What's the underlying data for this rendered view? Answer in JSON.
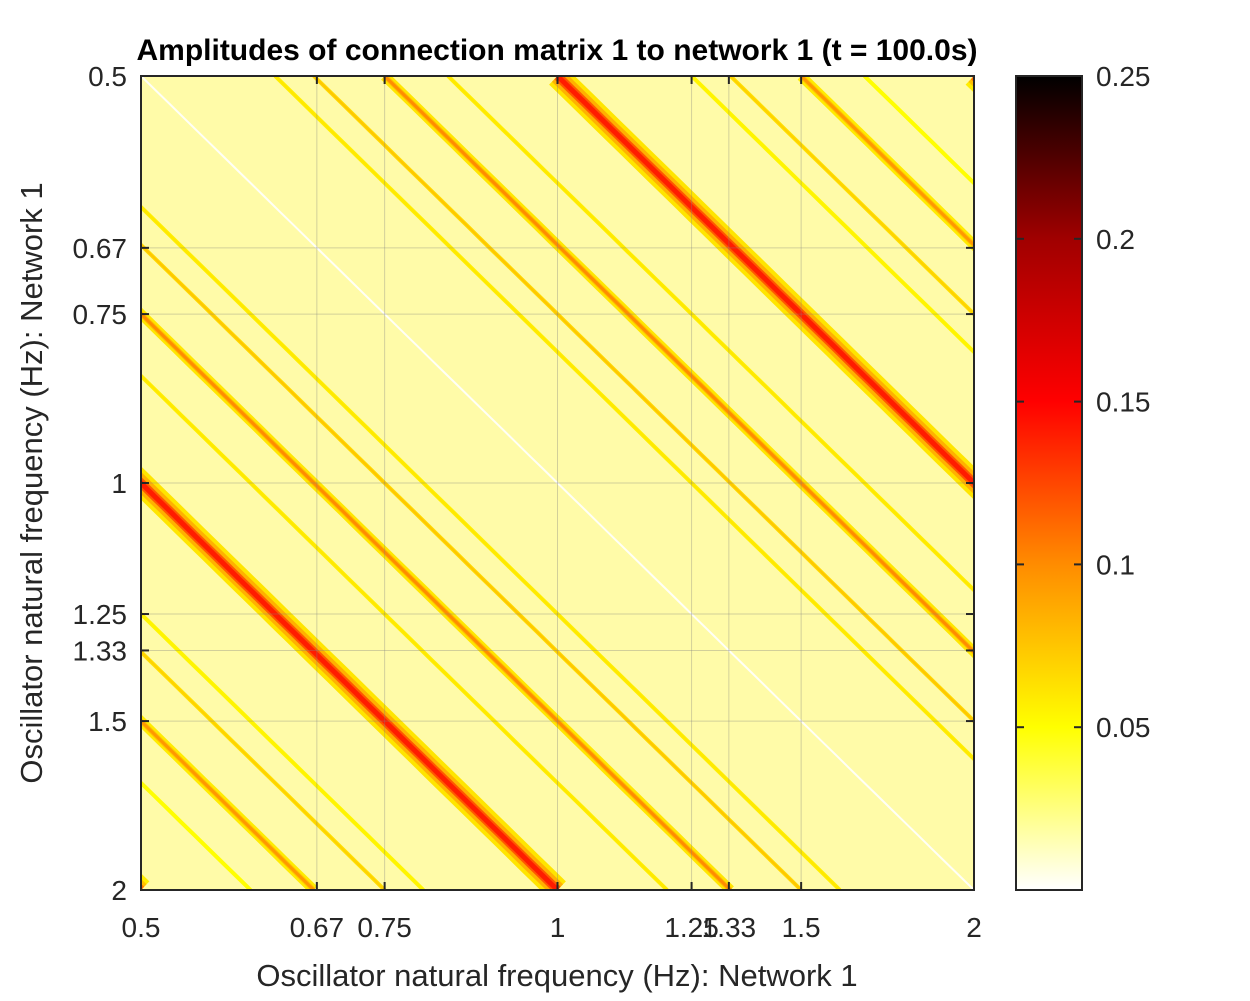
{
  "chart_data": {
    "type": "heatmap",
    "title": "Amplitudes of connection matrix 1 to network 1 (t = 100.0s)",
    "xlabel": "Oscillator natural frequency (Hz): Network 1",
    "ylabel": "Oscillator natural frequency (Hz): Network 1",
    "scale": "log2",
    "xlim": [
      0.5,
      2
    ],
    "ylim": [
      0.5,
      2
    ],
    "y_direction": "reversed",
    "x_ticks": [
      0.5,
      0.67,
      0.75,
      1,
      1.25,
      1.33,
      1.5,
      2
    ],
    "x_tick_labels": [
      "0.5",
      "0.67",
      "0.75",
      "1",
      "1.25",
      "1.33",
      "1.5",
      "2"
    ],
    "y_ticks": [
      0.5,
      0.67,
      0.75,
      1,
      1.25,
      1.33,
      1.5,
      2
    ],
    "y_tick_labels": [
      "0.5",
      "0.67",
      "0.75",
      "1",
      "1.25",
      "1.33",
      "1.5",
      "2"
    ],
    "grid": true,
    "colormap": "hot (reversed)",
    "color_range": [
      0,
      0.25
    ],
    "colorbar_ticks": [
      0.05,
      0.1,
      0.15,
      0.2,
      0.25
    ],
    "colorbar_tick_labels": [
      "0.05",
      "0.1",
      "0.15",
      "0.2",
      "0.25"
    ],
    "colorbar_position": "right",
    "background_level": 0.035,
    "ridges": [
      {
        "ratio_x_over_y": 1,
        "peak_amplitude": 0.0
      },
      {
        "ratio_x_over_y": 2,
        "peak_amplitude": 0.14
      },
      {
        "ratio_x_over_y": 0.5,
        "peak_amplitude": 0.14
      },
      {
        "ratio_x_over_y": 4,
        "peak_amplitude": 0.13
      },
      {
        "ratio_x_over_y": 0.25,
        "peak_amplitude": 0.13
      },
      {
        "ratio_x_over_y": 1.5,
        "peak_amplitude": 0.1
      },
      {
        "ratio_x_over_y": 0.6667,
        "peak_amplitude": 0.1
      },
      {
        "ratio_x_over_y": 3,
        "peak_amplitude": 0.095
      },
      {
        "ratio_x_over_y": 0.3333,
        "peak_amplitude": 0.095
      },
      {
        "ratio_x_over_y": 1.3333,
        "peak_amplitude": 0.075
      },
      {
        "ratio_x_over_y": 0.75,
        "peak_amplitude": 0.075
      },
      {
        "ratio_x_over_y": 2.6667,
        "peak_amplitude": 0.07
      },
      {
        "ratio_x_over_y": 0.375,
        "peak_amplitude": 0.07
      },
      {
        "ratio_x_over_y": 1.25,
        "peak_amplitude": 0.06
      },
      {
        "ratio_x_over_y": 0.8,
        "peak_amplitude": 0.06
      },
      {
        "ratio_x_over_y": 1.6667,
        "peak_amplitude": 0.06
      },
      {
        "ratio_x_over_y": 0.6,
        "peak_amplitude": 0.06
      },
      {
        "ratio_x_over_y": 2.5,
        "peak_amplitude": 0.055
      },
      {
        "ratio_x_over_y": 0.4,
        "peak_amplitude": 0.055
      },
      {
        "ratio_x_over_y": 3.3333,
        "peak_amplitude": 0.05
      },
      {
        "ratio_x_over_y": 0.3,
        "peak_amplitude": 0.05
      }
    ]
  }
}
